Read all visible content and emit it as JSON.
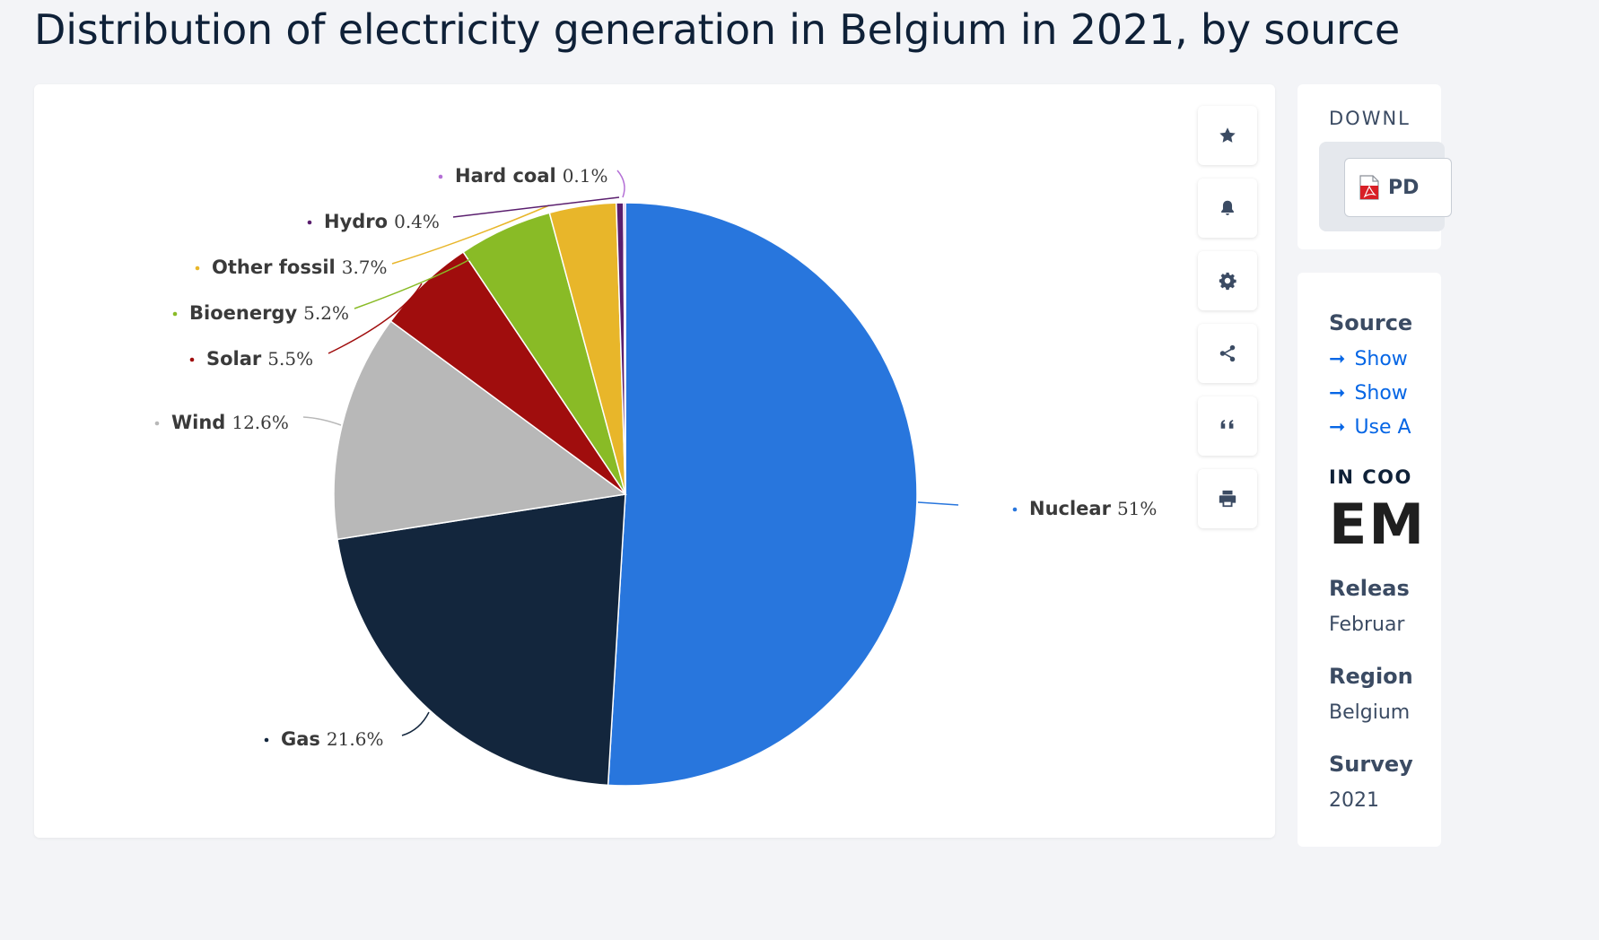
{
  "title": "Distribution of electricity generation in Belgium in 2021, by source",
  "chart_data": {
    "type": "pie",
    "title": "Distribution of electricity generation in Belgium in 2021, by source",
    "unit": "%",
    "slices": [
      {
        "label": "Nuclear",
        "value": 51,
        "display": "51%",
        "color": "#2876dd"
      },
      {
        "label": "Gas",
        "value": 21.6,
        "display": "21.6%",
        "color": "#13263d"
      },
      {
        "label": "Wind",
        "value": 12.6,
        "display": "12.6%",
        "color": "#b8b8b8"
      },
      {
        "label": "Solar",
        "value": 5.5,
        "display": "5.5%",
        "color": "#a00d0d"
      },
      {
        "label": "Bioenergy",
        "value": 5.2,
        "display": "5.2%",
        "color": "#89bb26"
      },
      {
        "label": "Other fossil",
        "value": 3.7,
        "display": "3.7%",
        "color": "#e8b62a"
      },
      {
        "label": "Hydro",
        "value": 0.4,
        "display": "0.4%",
        "color": "#5a1e6e"
      },
      {
        "label": "Hard coal",
        "value": 0.1,
        "display": "0.1%",
        "color": "#b46fd6"
      }
    ]
  },
  "toolbar": {
    "icons": [
      "star-icon",
      "bell-icon",
      "gear-icon",
      "share-icon",
      "quote-icon",
      "print-icon"
    ]
  },
  "download": {
    "header": "DOWNL",
    "pdf_label": "PD"
  },
  "sidebar": {
    "source_header": "Source",
    "links": [
      "Show",
      "Show",
      "Use A"
    ],
    "coop_label": "IN COO",
    "coop_logo": "EM",
    "release_header": "Releas",
    "release_value": "Februar",
    "region_header": "Region",
    "region_value": "Belgium",
    "survey_header": "Survey",
    "survey_value": "2021"
  }
}
